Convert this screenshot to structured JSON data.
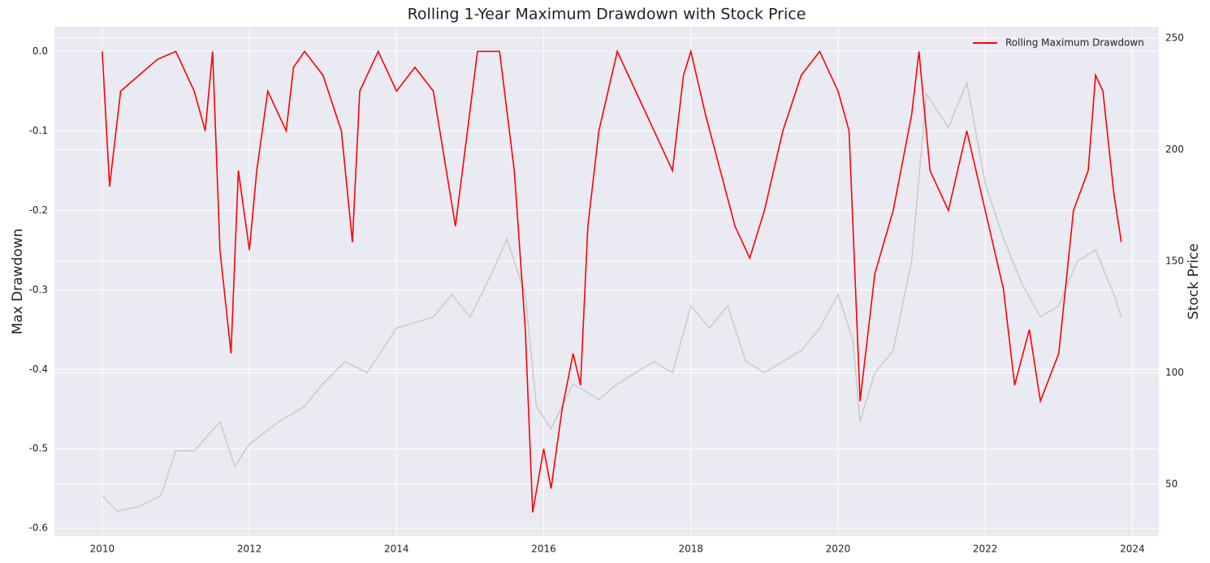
{
  "chart_data": {
    "type": "line",
    "title": "Rolling 1-Year Maximum Drawdown with Stock Price",
    "ylabel": "Max Drawdown",
    "y2label": "Stock Price",
    "xlim": [
      2009.35,
      2024.36
    ],
    "xticks": [
      2010,
      2012,
      2014,
      2016,
      2018,
      2020,
      2022,
      2024
    ],
    "ylim": [
      -0.61,
      0.031
    ],
    "yticks": [
      {
        "value": 0,
        "label": "0.0"
      },
      -0.1,
      -0.2,
      -0.3,
      -0.4,
      -0.5,
      -0.6
    ],
    "y2lim": [
      26.7,
      255.1
    ],
    "y2ticks": [
      50,
      100,
      150,
      200,
      250
    ],
    "grid": true,
    "legend": "upper right",
    "series": [
      {
        "color": "#cccccc",
        "axis": "y2",
        "x": [
          2010,
          2010.2,
          2010.5,
          2010.8,
          2011.0,
          2011.25,
          2011.6,
          2011.8,
          2012.0,
          2012.4,
          2012.75,
          2013.0,
          2013.3,
          2013.6,
          2014.0,
          2014.5,
          2014.75,
          2015.0,
          2015.3,
          2015.5,
          2015.75,
          2015.9,
          2016.1,
          2016.4,
          2016.75,
          2017.0,
          2017.5,
          2017.75,
          2018.0,
          2018.25,
          2018.5,
          2018.75,
          2019.0,
          2019.5,
          2019.75,
          2020.0,
          2020.2,
          2020.3,
          2020.5,
          2020.75,
          2021.0,
          2021.2,
          2021.5,
          2021.75,
          2022.0,
          2022.25,
          2022.5,
          2022.75,
          2023.0,
          2023.25,
          2023.5,
          2023.75,
          2023.85
        ],
        "values": [
          45,
          38,
          40,
          45,
          65,
          65,
          78,
          58,
          68,
          78,
          85,
          95,
          105,
          100,
          120,
          125,
          135,
          125,
          145,
          160,
          135,
          85,
          75,
          95,
          88,
          95,
          105,
          100,
          130,
          120,
          130,
          105,
          100,
          110,
          120,
          135,
          115,
          78,
          100,
          110,
          150,
          225,
          210,
          230,
          185,
          160,
          140,
          125,
          130,
          150,
          155,
          135,
          125
        ]
      },
      {
        "name": "Rolling Maximum Drawdown",
        "color": "#ff0000",
        "axis": "y",
        "x": [
          2010.0,
          2010.1,
          2010.25,
          2010.5,
          2010.75,
          2011.0,
          2011.25,
          2011.4,
          2011.5,
          2011.6,
          2011.75,
          2011.85,
          2012.0,
          2012.1,
          2012.25,
          2012.5,
          2012.6,
          2012.75,
          2013.0,
          2013.25,
          2013.4,
          2013.5,
          2013.75,
          2014.0,
          2014.25,
          2014.5,
          2014.8,
          2015.1,
          2015.4,
          2015.6,
          2015.75,
          2015.85,
          2016.0,
          2016.1,
          2016.25,
          2016.4,
          2016.5,
          2016.6,
          2016.75,
          2017.0,
          2017.25,
          2017.5,
          2017.75,
          2017.9,
          2018.0,
          2018.2,
          2018.4,
          2018.6,
          2018.8,
          2019.0,
          2019.25,
          2019.5,
          2019.75,
          2020.0,
          2020.15,
          2020.3,
          2020.5,
          2020.75,
          2021.0,
          2021.1,
          2021.25,
          2021.5,
          2021.75,
          2022.0,
          2022.25,
          2022.4,
          2022.6,
          2022.75,
          2023.0,
          2023.2,
          2023.4,
          2023.5,
          2023.6,
          2023.75,
          2023.85
        ],
        "values": [
          0,
          -0.17,
          -0.05,
          -0.03,
          -0.01,
          0,
          -0.05,
          -0.1,
          0,
          -0.25,
          -0.38,
          -0.15,
          -0.25,
          -0.15,
          -0.05,
          -0.1,
          -0.02,
          0,
          -0.03,
          -0.1,
          -0.24,
          -0.05,
          0,
          -0.05,
          -0.02,
          -0.05,
          -0.22,
          0,
          0,
          -0.15,
          -0.35,
          -0.58,
          -0.5,
          -0.55,
          -0.45,
          -0.38,
          -0.42,
          -0.22,
          -0.1,
          0,
          -0.05,
          -0.1,
          -0.15,
          -0.03,
          0,
          -0.08,
          -0.15,
          -0.22,
          -0.26,
          -0.2,
          -0.1,
          -0.03,
          0,
          -0.05,
          -0.1,
          -0.44,
          -0.28,
          -0.2,
          -0.08,
          0,
          -0.15,
          -0.2,
          -0.1,
          -0.2,
          -0.3,
          -0.42,
          -0.35,
          -0.44,
          -0.38,
          -0.2,
          -0.15,
          -0.03,
          -0.05,
          -0.18,
          -0.24
        ]
      }
    ]
  }
}
